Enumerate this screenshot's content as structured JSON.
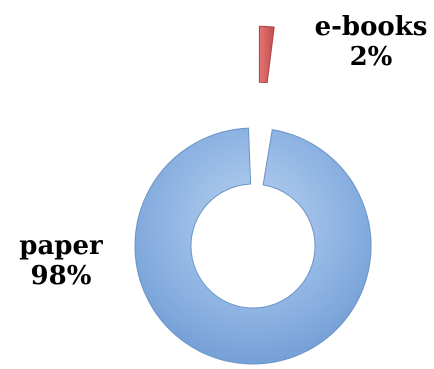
{
  "chart_data": {
    "type": "donut",
    "series": [
      {
        "values": [
          {
            "category": "e-books",
            "value": 2,
            "label": "e-books",
            "value_label": "2%",
            "color": "#d9534f"
          },
          {
            "category": "paper",
            "value": 98,
            "label": "paper",
            "value_label": "98%",
            "color": "#8db3e2"
          }
        ]
      }
    ],
    "legend": "none",
    "data_labels": "category and percentage"
  }
}
